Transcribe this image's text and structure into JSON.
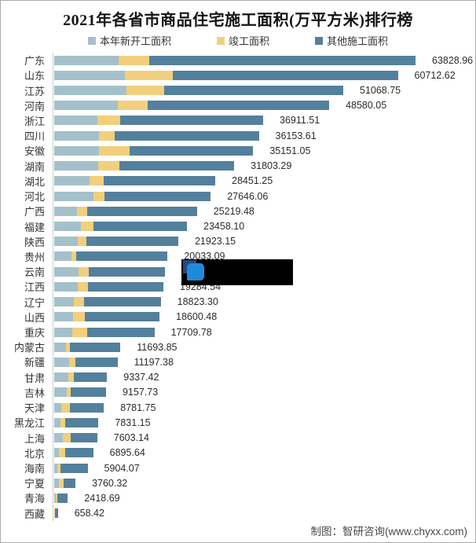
{
  "page": {
    "title": "2021年各省市商品住宅施工面积(万平方米)排行榜",
    "footer": "制图：智研咨询(www.chyxx.com)"
  },
  "legend": [
    {
      "label": "本年新开工面积",
      "color": "#a4c0ca"
    },
    {
      "label": "竣工面积",
      "color": "#f1cf7c"
    },
    {
      "label": "其他施工面积",
      "color": "#53809c"
    }
  ],
  "colors": {
    "axis": "#cccccc",
    "category_label": "#333333",
    "value_label": "#2b2b2b",
    "tooltip_bg": "#000000",
    "tooltip_icon_navy": "#28457f",
    "tooltip_icon_blue": "#1e8bd9"
  },
  "tooltip_overlay": {
    "present": true,
    "icon": "blue-cursor-badge-icon",
    "covers": "云南 value label"
  },
  "chart_data": {
    "type": "bar",
    "orientation": "horizontal",
    "stacked": true,
    "unit": "万平方米",
    "value_axis_max": 63828.96,
    "series_names": [
      "本年新开工面积",
      "竣工面积",
      "其他施工面积"
    ],
    "rows": [
      {
        "province": "广东",
        "total": 63828.96,
        "value_label": "63828.96",
        "segments_est": {
          "new_start": 11380,
          "completed": 5415,
          "other": 47034
        }
      },
      {
        "province": "山东",
        "total": 60712.62,
        "value_label": "60712.62",
        "segments_est": {
          "new_start": 12490,
          "completed": 8470,
          "other": 39753
        }
      },
      {
        "province": "江苏",
        "total": 51068.75,
        "value_label": "51068.75",
        "segments_est": {
          "new_start": 12770,
          "completed": 6660,
          "other": 31639
        }
      },
      {
        "province": "河南",
        "total": 48580.05,
        "value_label": "48580.05",
        "segments_est": {
          "new_start": 11240,
          "completed": 5270,
          "other": 32070
        }
      },
      {
        "province": "浙江",
        "total": 36911.51,
        "value_label": "36911.51",
        "segments_est": {
          "new_start": 7630,
          "completed": 4030,
          "other": 25252
        }
      },
      {
        "province": "四川",
        "total": 36153.61,
        "value_label": "36153.61",
        "segments_est": {
          "new_start": 7910,
          "completed": 2780,
          "other": 25464
        }
      },
      {
        "province": "安徽",
        "total": 35151.05,
        "value_label": "35151.05",
        "segments_est": {
          "new_start": 7910,
          "completed": 5410,
          "other": 21831
        }
      },
      {
        "province": "湖南",
        "total": 31803.29,
        "value_label": "31803.29",
        "segments_est": {
          "new_start": 7770,
          "completed": 3750,
          "other": 20283
        }
      },
      {
        "province": "湖北",
        "total": 28451.25,
        "value_label": "28451.25",
        "segments_est": {
          "new_start": 6250,
          "completed": 2500,
          "other": 19701
        }
      },
      {
        "province": "河北",
        "total": 27646.06,
        "value_label": "27646.06",
        "segments_est": {
          "new_start": 6940,
          "completed": 1940,
          "other": 18766
        }
      },
      {
        "province": "广西",
        "total": 25219.48,
        "value_label": "25219.48",
        "segments_est": {
          "new_start": 4030,
          "completed": 1800,
          "other": 19389
        }
      },
      {
        "province": "福建",
        "total": 23458.1,
        "value_label": "23458.10",
        "segments_est": {
          "new_start": 4720,
          "completed": 2220,
          "other": 16518
        }
      },
      {
        "province": "陕西",
        "total": 21923.15,
        "value_label": "21923.15",
        "segments_est": {
          "new_start": 4160,
          "completed": 1530,
          "other": 16233
        }
      },
      {
        "province": "贵州",
        "total": 20033.09,
        "value_label": "20033.09",
        "segments_est": {
          "new_start": 3050,
          "completed": 830,
          "other": 16153
        }
      },
      {
        "province": "云南",
        "total": 19600,
        "value_label": "",
        "segments_est": {
          "new_start": 4300,
          "completed": 1800,
          "other": 13500
        }
      },
      {
        "province": "江西",
        "total": 19284.54,
        "value_label": "19284.54",
        "segments_est": {
          "new_start": 4160,
          "completed": 1800,
          "other": 13325
        }
      },
      {
        "province": "辽宁",
        "total": 18823.3,
        "value_label": "18823.30",
        "segments_est": {
          "new_start": 3470,
          "completed": 1800,
          "other": 13553
        }
      },
      {
        "province": "山西",
        "total": 18600.48,
        "value_label": "18600.48",
        "segments_est": {
          "new_start": 3330,
          "completed": 2080,
          "other": 13190
        }
      },
      {
        "province": "重庆",
        "total": 17709.78,
        "value_label": "17709.78",
        "segments_est": {
          "new_start": 3190,
          "completed": 2640,
          "other": 11880
        }
      },
      {
        "province": "内蒙古",
        "total": 11693.85,
        "value_label": "11693.85",
        "segments_est": {
          "new_start": 2080,
          "completed": 690,
          "other": 8924
        }
      },
      {
        "province": "新疆",
        "total": 11197.38,
        "value_label": "11197.38",
        "segments_est": {
          "new_start": 2640,
          "completed": 1110,
          "other": 7447
        }
      },
      {
        "province": "甘肃",
        "total": 9337.42,
        "value_label": "9337.42",
        "segments_est": {
          "new_start": 2500,
          "completed": 970,
          "other": 5867
        }
      },
      {
        "province": "吉林",
        "total": 9157.73,
        "value_label": "9157.73",
        "segments_est": {
          "new_start": 2220,
          "completed": 690,
          "other": 6248
        }
      },
      {
        "province": "天津",
        "total": 8781.75,
        "value_label": "8781.75",
        "segments_est": {
          "new_start": 1250,
          "completed": 1530,
          "other": 6002
        }
      },
      {
        "province": "黑龙江",
        "total": 7831.15,
        "value_label": "7831.15",
        "segments_est": {
          "new_start": 1110,
          "completed": 830,
          "other": 5891
        }
      },
      {
        "province": "上海",
        "total": 7603.14,
        "value_label": "7603.14",
        "segments_est": {
          "new_start": 1530,
          "completed": 1390,
          "other": 4683
        }
      },
      {
        "province": "北京",
        "total": 6895.64,
        "value_label": "6895.64",
        "segments_est": {
          "new_start": 830,
          "completed": 1110,
          "other": 4956
        }
      },
      {
        "province": "海南",
        "total": 5904.07,
        "value_label": "5904.07",
        "segments_est": {
          "new_start": 560,
          "completed": 560,
          "other": 4784
        }
      },
      {
        "province": "宁夏",
        "total": 3760.32,
        "value_label": "3760.32",
        "segments_est": {
          "new_start": 830,
          "completed": 830,
          "other": 2100
        }
      },
      {
        "province": "青海",
        "total": 2418.69,
        "value_label": "2418.69",
        "segments_est": {
          "new_start": 280,
          "completed": 280,
          "other": 1859
        }
      },
      {
        "province": "西藏",
        "total": 658.42,
        "value_label": "658.42",
        "segments_est": {
          "new_start": 50,
          "completed": 30,
          "other": 578
        }
      }
    ]
  }
}
